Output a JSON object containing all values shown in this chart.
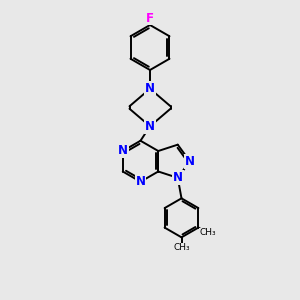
{
  "bg_color": "#e8e8e8",
  "bond_color": "#000000",
  "N_color": "#0000ff",
  "F_color": "#ff00ff",
  "line_width": 1.4,
  "font_size": 8.5,
  "figsize": [
    3.0,
    3.0
  ],
  "dpi": 100,
  "xlim": [
    0,
    10
  ],
  "ylim": [
    0,
    12
  ]
}
